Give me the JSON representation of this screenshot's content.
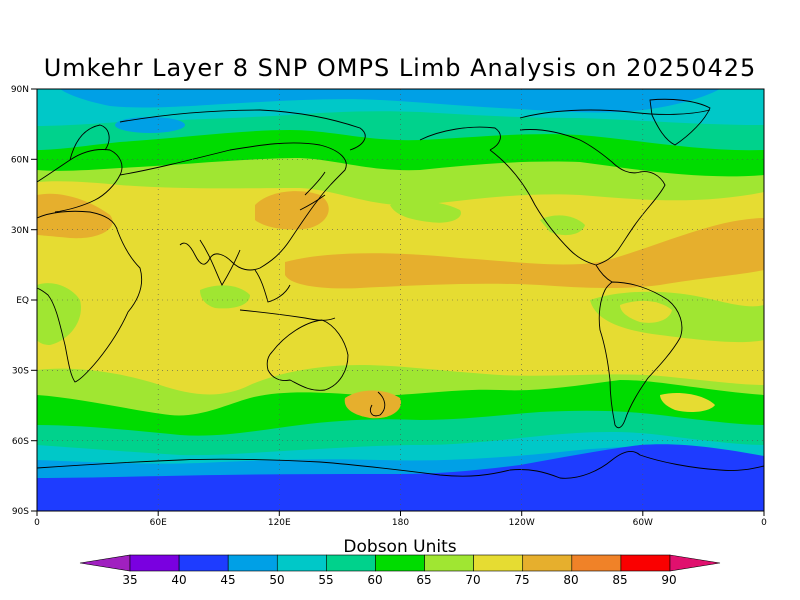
{
  "title": "Umkehr Layer 8 SNP OMPS Limb Analysis on 20250425",
  "map": {
    "lat_labels": [
      "90N",
      "60N",
      "30N",
      "EQ",
      "30S",
      "60S",
      "90S"
    ],
    "lon_labels": [
      "0",
      "60E",
      "120E",
      "180",
      "120W",
      "60W",
      "0"
    ]
  },
  "colorbar": {
    "title": "Dobson Units",
    "labels": [
      "35",
      "40",
      "45",
      "50",
      "55",
      "60",
      "65",
      "70",
      "75",
      "80",
      "85",
      "90"
    ],
    "colors": [
      "#a020c0",
      "#7a00e0",
      "#1e3cff",
      "#00a0e6",
      "#00c8c8",
      "#00d28c",
      "#00dc00",
      "#a0e632",
      "#e6dc32",
      "#e6af2d",
      "#f08228",
      "#fa0000",
      "#e0106e"
    ]
  }
}
